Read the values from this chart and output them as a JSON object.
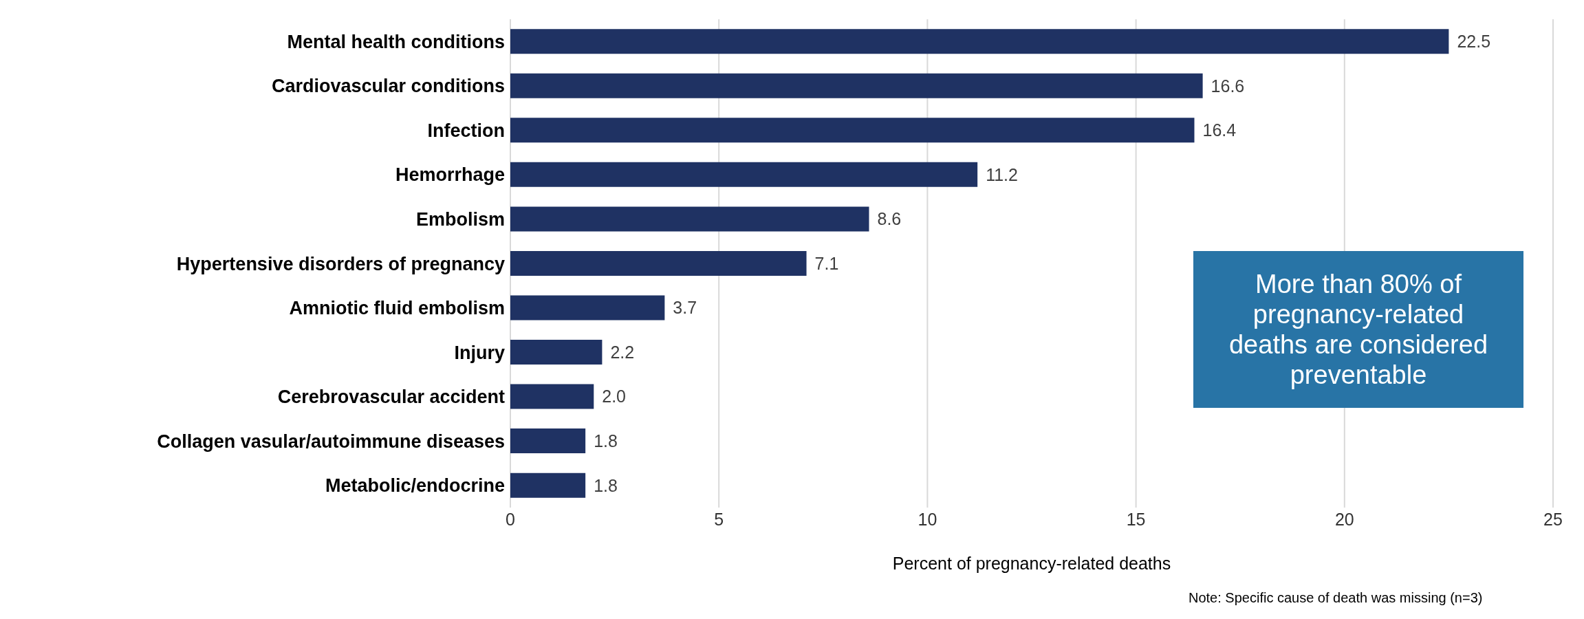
{
  "chart_data": {
    "type": "bar",
    "orientation": "horizontal",
    "categories": [
      "Mental health conditions",
      "Cardiovascular conditions",
      "Infection",
      "Hemorrhage",
      "Embolism",
      "Hypertensive disorders of pregnancy",
      "Amniotic fluid embolism",
      "Injury",
      "Cerebrovascular accident",
      "Collagen vasular/autoimmune diseases",
      "Metabolic/endocrine"
    ],
    "values": [
      22.5,
      16.6,
      16.4,
      11.2,
      8.6,
      7.1,
      3.7,
      2.2,
      2.0,
      1.8,
      1.8
    ],
    "value_labels": [
      "22.5",
      "16.6",
      "16.4",
      "11.2",
      "8.6",
      "7.1",
      "3.7",
      "2.2",
      "2.0",
      "1.8",
      "1.8"
    ],
    "color": "#1f3263",
    "xlim": [
      0,
      25
    ],
    "xticks": [
      0,
      5,
      10,
      15,
      20,
      25
    ],
    "xlabel": "Percent of pregnancy-related deaths",
    "grid": "x",
    "annotations": [
      "More than 80% of pregnancy-related deaths are considered preventable",
      "Note: Specific cause of death was missing (n=3)"
    ]
  }
}
